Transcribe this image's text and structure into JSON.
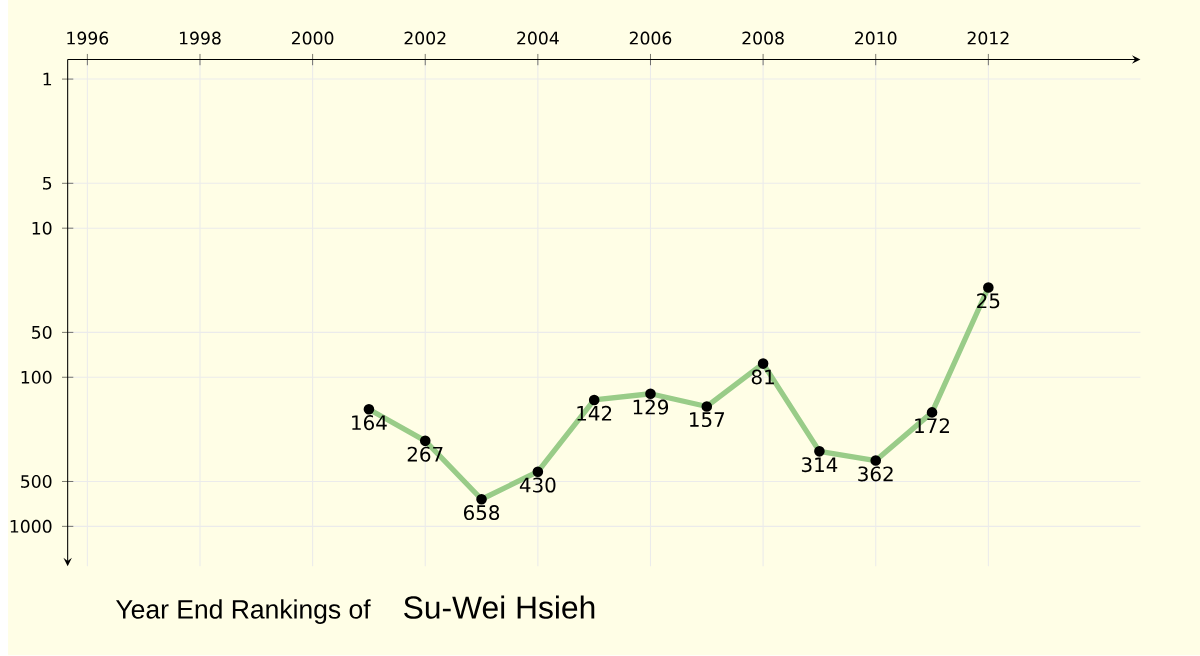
{
  "chart_data": {
    "type": "line",
    "title": "Year End Rankings of",
    "subtitle": "Su-Wei Hsieh",
    "x": [
      2001,
      2002,
      2003,
      2004,
      2005,
      2006,
      2007,
      2008,
      2009,
      2010,
      2011,
      2012
    ],
    "values": [
      164,
      267,
      658,
      430,
      142,
      129,
      157,
      81,
      314,
      362,
      172,
      25
    ],
    "color": "#99cc88",
    "marker": "circle",
    "line_style": "solid",
    "data_labels": true,
    "log": "y",
    "grid": true,
    "xlim": [
      1995.65,
      2014.7
    ],
    "xticks": [
      1996,
      1998,
      2000,
      2002,
      2004,
      2006,
      2008,
      2010,
      2012
    ],
    "ylim": [
      1850,
      0.74
    ],
    "yticks": [
      1,
      5,
      10,
      50,
      100,
      500,
      1000
    ]
  }
}
